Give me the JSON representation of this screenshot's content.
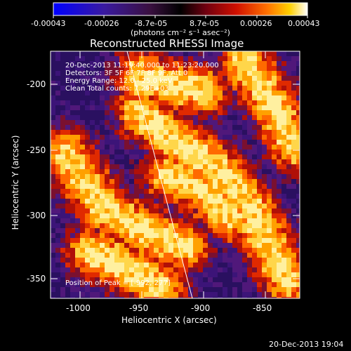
{
  "colorbar": {
    "tick_labels": [
      "-0.00043",
      "-0.00026",
      "-8.7e-05",
      "8.7e-05",
      "0.00026",
      "0.00043"
    ],
    "unit_label": "(photons cm⁻² s⁻¹ asec⁻²)",
    "colormap": [
      "#0000ff",
      "#2020c0",
      "#4a1a6a",
      "#000000",
      "#5a0020",
      "#b00000",
      "#ff3000",
      "#ff9000",
      "#ffe000",
      "#ffffff"
    ]
  },
  "title": "Reconstructed RHESSI Image",
  "info": {
    "line1": "20-Dec-2013 11:19:40.000 to 11:23:20.000",
    "line2": "Detectors: 3F 5F 6F 7F 8F 9F, Att 0",
    "line3": "Energy Range: 12.0 - 25.0 keV",
    "line4": "Clean     Total counts: 7.29E+03"
  },
  "peak_label": "Position of Peak = [-992,-277]",
  "x_axis": {
    "label": "Heliocentric X (arcsec)",
    "ticks": [
      "-1000",
      "-950",
      "-900",
      "-850"
    ],
    "range": [
      -1015,
      -825
    ]
  },
  "y_axis": {
    "label": "Heliocentric Y (arcsec)",
    "ticks": [
      "-200",
      "-250",
      "-300",
      "-350"
    ],
    "range": [
      -367,
      -180
    ]
  },
  "timestamp": "20-Dec-2013 19:04"
}
